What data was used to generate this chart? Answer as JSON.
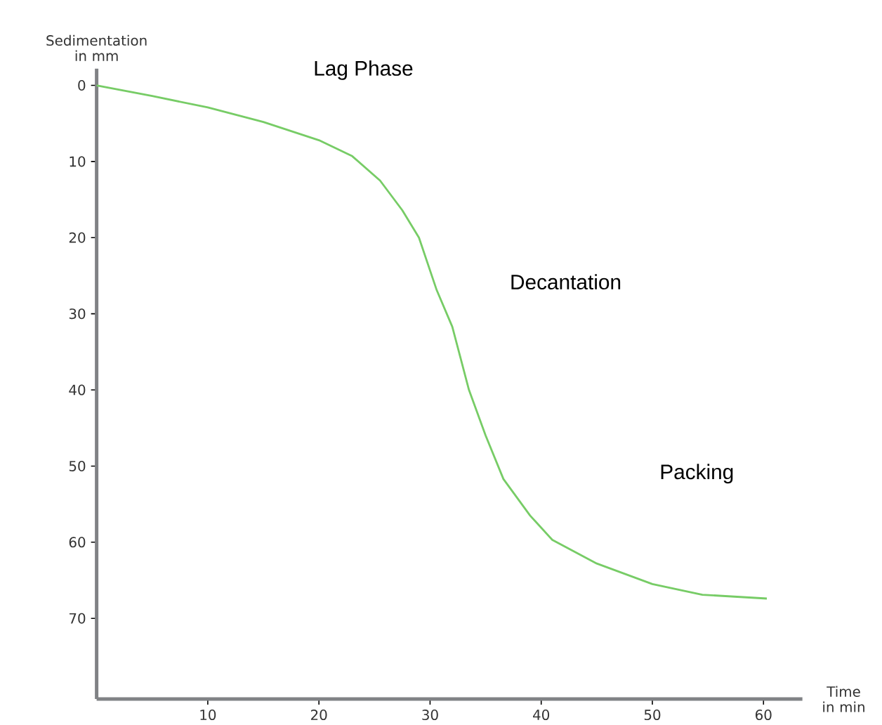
{
  "chart_data": {
    "type": "line",
    "xlabel": "Time in min",
    "ylabel": "Sedimentation in mm",
    "annotations": [
      "Lag Phase",
      "Decantation",
      "Packing"
    ],
    "x": [
      0,
      5,
      10,
      15,
      20,
      23,
      25.5,
      27.5,
      29,
      30.6,
      32,
      33.5,
      35,
      36.6,
      39,
      41,
      45,
      50,
      54.5,
      60.3
    ],
    "series": [
      {
        "color": "#77cc66",
        "values": [
          0,
          1.4,
          2.9,
          4.8,
          7.2,
          9.3,
          12.5,
          16.4,
          20,
          26.9,
          31.7,
          40,
          46,
          51.7,
          56.5,
          59.7,
          62.8,
          65.5,
          66.9,
          67.4
        ]
      }
    ],
    "xlim": [
      0,
      63.5
    ],
    "ylim": [
      80.6,
      -2.2
    ],
    "xticks": [
      10,
      20,
      30,
      40,
      50,
      60
    ],
    "yticks": [
      0,
      10,
      20,
      30,
      40,
      50,
      60,
      70
    ],
    "grid": false,
    "marker": "none",
    "line_style": "solid"
  }
}
